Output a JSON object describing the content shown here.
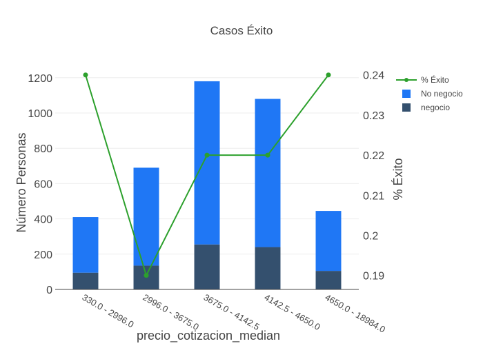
{
  "chart_data": {
    "type": "bar",
    "title": "Casos Éxito",
    "xlabel": "precio_cotizacion_median",
    "ylabel": "Número Personas",
    "y2label": "% Éxito",
    "categories": [
      "330.0 - 2996.0",
      "2996.0 - 3675.0",
      "3675.0 - 4142.5",
      "4142.5 - 4650.0",
      "4650.0 - 18984.0"
    ],
    "stacked": true,
    "series": [
      {
        "name": "negocio",
        "type": "bar",
        "axis": "y",
        "color": "#34506e",
        "values": [
          95,
          135,
          255,
          240,
          105
        ]
      },
      {
        "name": "No negocio",
        "type": "bar",
        "axis": "y",
        "color": "#1f77f5",
        "values": [
          315,
          555,
          925,
          840,
          340
        ]
      },
      {
        "name": "% Éxito",
        "type": "line",
        "axis": "y2",
        "color": "#2ca02c",
        "values": [
          0.24,
          0.19,
          0.22,
          0.22,
          0.24
        ]
      }
    ],
    "ylim": [
      0,
      1250
    ],
    "yticks": [
      0,
      200,
      400,
      600,
      800,
      1000,
      1200
    ],
    "y2lim": [
      0.1865,
      0.2415
    ],
    "y2ticks": [
      "0.19",
      "0.2",
      "0.21",
      "0.22",
      "0.23",
      "0.24"
    ],
    "legend": {
      "placement": "top-right",
      "items": [
        {
          "label": "% Éxito",
          "kind": "line",
          "color": "#2ca02c"
        },
        {
          "label": "No negocio",
          "kind": "box",
          "color": "#1f77f5"
        },
        {
          "label": "negocio",
          "kind": "box",
          "color": "#34506e"
        }
      ]
    },
    "grid": true
  }
}
